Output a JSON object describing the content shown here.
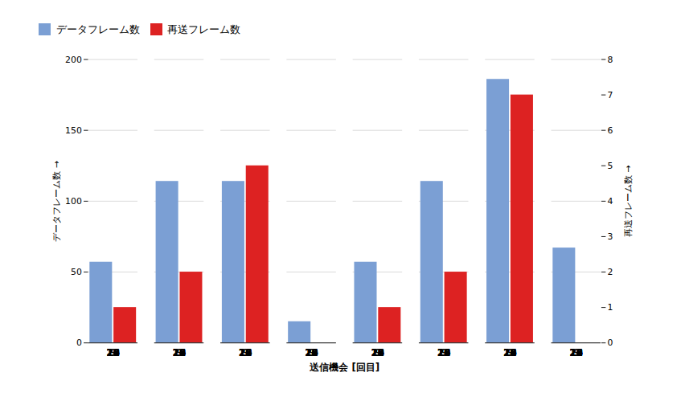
{
  "chart_data": {
    "type": "bar",
    "categories": [
      "9",
      "12",
      "16",
      "18",
      "20",
      "22",
      "24",
      "26"
    ],
    "series": [
      {
        "name": "データフレーム数",
        "color": "#7B9FD4",
        "values": [
          57,
          114,
          114,
          15,
          57,
          114,
          186,
          67
        ]
      },
      {
        "name": "再送フレーム数",
        "color": "#DD2222",
        "values": [
          1,
          2,
          5,
          0,
          1,
          2,
          7,
          0
        ],
        "axis": "y2"
      }
    ],
    "xlabel": "送信機会 [回目]",
    "ylabel": "データフレーム数",
    "y2label": "再送フレーム数",
    "ylim": [
      0,
      200
    ],
    "yticks": [
      0,
      50,
      100,
      150,
      200
    ],
    "y2lim": [
      0,
      8
    ],
    "y2ticks": [
      0,
      1,
      2,
      3,
      4,
      5,
      6,
      7,
      8
    ],
    "grid": true,
    "legend": "top"
  }
}
